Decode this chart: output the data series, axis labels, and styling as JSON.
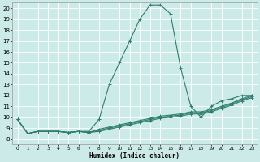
{
  "xlabel": "Humidex (Indice chaleur)",
  "ylabel": "",
  "background_color": "#cceae8",
  "line_color": "#2e7d6e",
  "grid_color": "#ffffff",
  "xlim": [
    -0.5,
    23.5
  ],
  "ylim": [
    7.5,
    20.5
  ],
  "xticks": [
    0,
    1,
    2,
    3,
    4,
    5,
    6,
    7,
    8,
    9,
    10,
    11,
    12,
    13,
    14,
    15,
    16,
    17,
    18,
    19,
    20,
    21,
    22,
    23
  ],
  "yticks": [
    8,
    9,
    10,
    11,
    12,
    13,
    14,
    15,
    16,
    17,
    18,
    19,
    20
  ],
  "series": [
    [
      9.8,
      8.5,
      8.7,
      8.7,
      8.7,
      8.6,
      8.7,
      8.7,
      9.8,
      13.0,
      15.0,
      17.0,
      19.0,
      20.3,
      20.3,
      19.5,
      14.5,
      11.0,
      10.0,
      11.0,
      11.5,
      11.7,
      12.0,
      12.0
    ],
    [
      9.8,
      8.5,
      8.7,
      8.7,
      8.7,
      8.6,
      8.7,
      8.6,
      8.9,
      9.1,
      9.3,
      9.5,
      9.7,
      9.9,
      10.1,
      10.2,
      10.3,
      10.5,
      10.5,
      10.7,
      11.0,
      11.3,
      11.7,
      12.0
    ],
    [
      9.8,
      8.5,
      8.7,
      8.7,
      8.7,
      8.6,
      8.7,
      8.6,
      8.8,
      9.0,
      9.2,
      9.4,
      9.6,
      9.8,
      10.0,
      10.1,
      10.2,
      10.4,
      10.4,
      10.6,
      10.9,
      11.2,
      11.6,
      11.9
    ],
    [
      9.8,
      8.5,
      8.7,
      8.7,
      8.7,
      8.6,
      8.7,
      8.6,
      8.7,
      8.9,
      9.1,
      9.3,
      9.5,
      9.7,
      9.9,
      10.0,
      10.1,
      10.3,
      10.3,
      10.5,
      10.8,
      11.1,
      11.5,
      11.8
    ]
  ]
}
